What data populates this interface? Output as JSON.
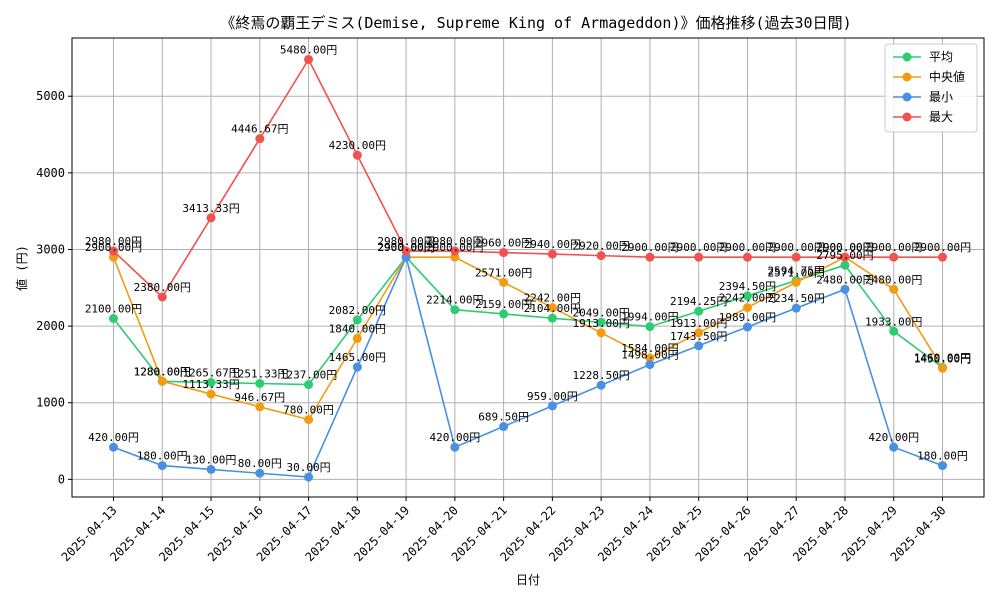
{
  "chart_data": {
    "type": "line",
    "title": "《終焉の覇王デミス(Demise, Supreme King of Armageddon)》価格推移(過去30日間)",
    "xlabel": "日付",
    "ylabel": "値 (円)",
    "ylim": [
      -230,
      5760
    ],
    "yticks": [
      0,
      1000,
      2000,
      3000,
      4000,
      5000
    ],
    "grid": true,
    "legend_position": "top-right",
    "x": [
      "2025-04-13",
      "2025-04-14",
      "2025-04-15",
      "2025-04-16",
      "2025-04-17",
      "2025-04-18",
      "2025-04-19",
      "2025-04-20",
      "2025-04-21",
      "2025-04-22",
      "2025-04-23",
      "2025-04-24",
      "2025-04-25",
      "2025-04-26",
      "2025-04-27",
      "2025-04-28",
      "2025-04-29",
      "2025-04-30"
    ],
    "value_suffix": "円",
    "series": [
      {
        "name": "平均",
        "color": "#2ecc71",
        "values": [
          2100,
          1280,
          1265.67,
          1251.33,
          1237,
          2082,
          2900,
          2214,
          2159,
          2104,
          2049,
          1994,
          2194.25,
          2394.5,
          2594.75,
          2795,
          1933,
          1460
        ]
      },
      {
        "name": "中央値",
        "color": "#f39c12",
        "values": [
          2900,
          1280,
          1113.33,
          946.67,
          780,
          1840,
          2900,
          2900,
          2571,
          2242,
          1913,
          1584,
          1913,
          2242,
          2571,
          2900,
          2480,
          1450
        ]
      },
      {
        "name": "最小",
        "color": "#4a90e2",
        "values": [
          420,
          180,
          130,
          80,
          30,
          1465,
          2900,
          420,
          689.5,
          959,
          1228.5,
          1498,
          1743.5,
          1989,
          2234.5,
          2480,
          420,
          180
        ]
      },
      {
        "name": "最大",
        "color": "#f0524f",
        "values": [
          2980,
          2380,
          3413.33,
          4446.67,
          5480,
          4230,
          2980,
          2980,
          2960,
          2940,
          2920,
          2900,
          2900,
          2900,
          2900,
          2900,
          2900,
          2900
        ]
      }
    ]
  }
}
